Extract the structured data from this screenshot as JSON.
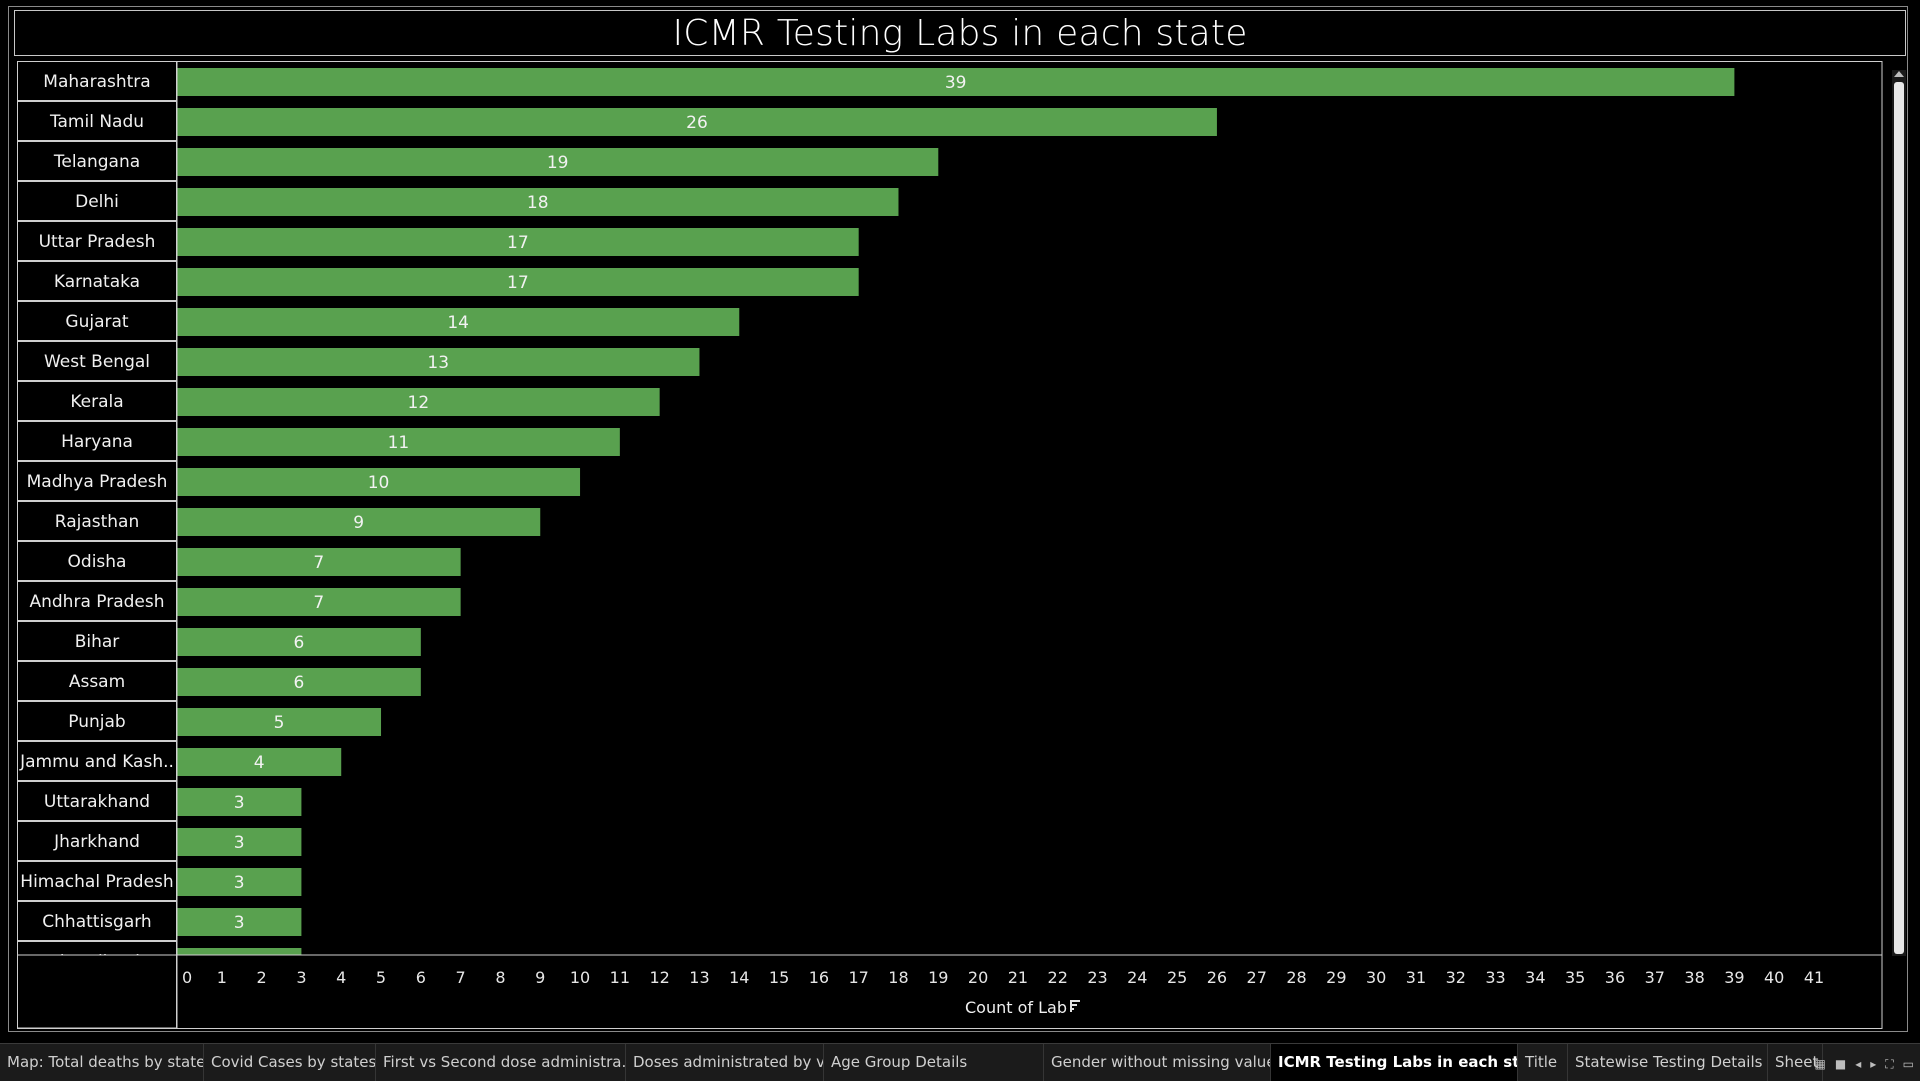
{
  "chart_data": {
    "type": "bar",
    "orientation": "horizontal",
    "title": "ICMR Testing Labs in each state",
    "xlabel": "Count of Lab",
    "ylabel": "",
    "xlim": [
      0,
      41
    ],
    "x_ticks": [
      0,
      1,
      2,
      3,
      4,
      5,
      6,
      7,
      8,
      9,
      10,
      11,
      12,
      13,
      14,
      15,
      16,
      17,
      18,
      19,
      20,
      21,
      22,
      23,
      24,
      25,
      26,
      27,
      28,
      29,
      30,
      31,
      32,
      33,
      34,
      35,
      36,
      37,
      38,
      39,
      40,
      41
    ],
    "categories": [
      "Maharashtra",
      "Tamil Nadu",
      "Telangana",
      "Delhi",
      "Uttar Pradesh",
      "Karnataka",
      "Gujarat",
      "West Bengal",
      "Kerala",
      "Haryana",
      "Madhya Pradesh",
      "Rajasthan",
      "Odisha",
      "Andhra Pradesh",
      "Bihar",
      "Assam",
      "Punjab",
      "Jammu and Kash..",
      "Uttarakhand",
      "Jharkhand",
      "Himachal Pradesh",
      "Chhattisgarh",
      "Chandigarh"
    ],
    "values": [
      39,
      26,
      19,
      18,
      17,
      17,
      14,
      13,
      12,
      11,
      10,
      9,
      7,
      7,
      6,
      6,
      5,
      4,
      3,
      3,
      3,
      3,
      3
    ],
    "bar_color": "#59a14f",
    "grid": false,
    "sorted": "descending"
  },
  "tabs": [
    {
      "label": "Map: Total deaths by state",
      "active": false
    },
    {
      "label": "Covid Cases by states",
      "active": false
    },
    {
      "label": "First vs Second dose administra...",
      "active": false
    },
    {
      "label": "Doses administrated by vaccine",
      "active": false
    },
    {
      "label": "Age Group Details",
      "active": false
    },
    {
      "label": "Gender without missing value",
      "active": false
    },
    {
      "label": "ICMR Testing Labs in each state",
      "active": true
    },
    {
      "label": "Title",
      "active": false
    },
    {
      "label": "Statewise Testing Details",
      "active": false
    },
    {
      "label": "Sheet",
      "active": false
    }
  ],
  "controls": {
    "grid_icon": "grid-view-icon",
    "list_icon": "list-view-icon",
    "prev_icon": "arrow-left-icon",
    "next_icon": "arrow-right-icon",
    "fullscreen_icon": "fullscreen-icon",
    "present_icon": "presentation-icon"
  }
}
